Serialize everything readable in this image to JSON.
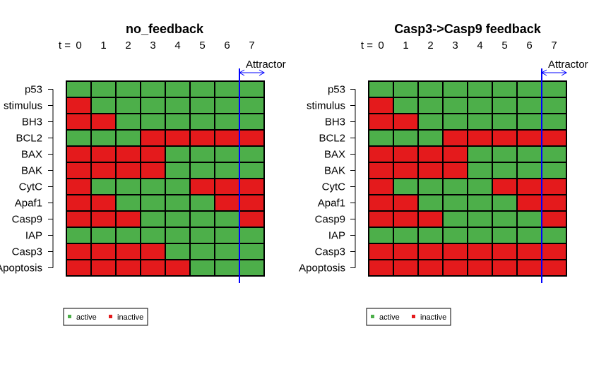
{
  "colors": {
    "active": "#4daf4a",
    "inactive": "#e41a1c",
    "attractor_line": "#0000ff"
  },
  "chart_data": [
    {
      "type": "heatmap",
      "title": "no_feedback",
      "time_label": "t =",
      "time_steps": [
        "0",
        "1",
        "2",
        "3",
        "4",
        "5",
        "6",
        "7"
      ],
      "attractor_label": "Attractor",
      "attractor_start": 7,
      "genes": [
        "p53",
        "stimulus",
        "BH3",
        "BCL2",
        "BAX",
        "BAK",
        "CytC",
        "Apaf1",
        "Casp9",
        "IAP",
        "Casp3",
        "Apoptosis"
      ],
      "states": [
        [
          1,
          1,
          1,
          1,
          1,
          1,
          1,
          1
        ],
        [
          0,
          1,
          1,
          1,
          1,
          1,
          1,
          1
        ],
        [
          0,
          0,
          1,
          1,
          1,
          1,
          1,
          1
        ],
        [
          1,
          1,
          1,
          0,
          0,
          0,
          0,
          0
        ],
        [
          0,
          0,
          0,
          0,
          1,
          1,
          1,
          1
        ],
        [
          0,
          0,
          0,
          0,
          1,
          1,
          1,
          1
        ],
        [
          0,
          1,
          1,
          1,
          1,
          0,
          0,
          0
        ],
        [
          0,
          0,
          1,
          1,
          1,
          1,
          0,
          0
        ],
        [
          0,
          0,
          0,
          1,
          1,
          1,
          1,
          0
        ],
        [
          1,
          1,
          1,
          1,
          1,
          1,
          1,
          1
        ],
        [
          0,
          0,
          0,
          0,
          1,
          1,
          1,
          1
        ],
        [
          0,
          0,
          0,
          0,
          0,
          1,
          1,
          1
        ]
      ],
      "legend": {
        "entries": [
          "active",
          "inactive"
        ]
      }
    },
    {
      "type": "heatmap",
      "title": "Casp3->Casp9 feedback",
      "time_label": "t =",
      "time_steps": [
        "0",
        "1",
        "2",
        "3",
        "4",
        "5",
        "6",
        "7"
      ],
      "attractor_label": "Attractor",
      "attractor_start": 7,
      "genes": [
        "p53",
        "stimulus",
        "BH3",
        "BCL2",
        "BAX",
        "BAK",
        "CytC",
        "Apaf1",
        "Casp9",
        "IAP",
        "Casp3",
        "Apoptosis"
      ],
      "states": [
        [
          1,
          1,
          1,
          1,
          1,
          1,
          1,
          1
        ],
        [
          0,
          1,
          1,
          1,
          1,
          1,
          1,
          1
        ],
        [
          0,
          0,
          1,
          1,
          1,
          1,
          1,
          1
        ],
        [
          1,
          1,
          1,
          0,
          0,
          0,
          0,
          0
        ],
        [
          0,
          0,
          0,
          0,
          1,
          1,
          1,
          1
        ],
        [
          0,
          0,
          0,
          0,
          1,
          1,
          1,
          1
        ],
        [
          0,
          1,
          1,
          1,
          1,
          0,
          0,
          0
        ],
        [
          0,
          0,
          1,
          1,
          1,
          1,
          0,
          0
        ],
        [
          0,
          0,
          0,
          1,
          1,
          1,
          1,
          0
        ],
        [
          1,
          1,
          1,
          1,
          1,
          1,
          1,
          1
        ],
        [
          0,
          0,
          0,
          0,
          0,
          0,
          0,
          0
        ],
        [
          0,
          0,
          0,
          0,
          0,
          0,
          0,
          0
        ]
      ],
      "legend": {
        "entries": [
          "active",
          "inactive"
        ]
      }
    }
  ]
}
